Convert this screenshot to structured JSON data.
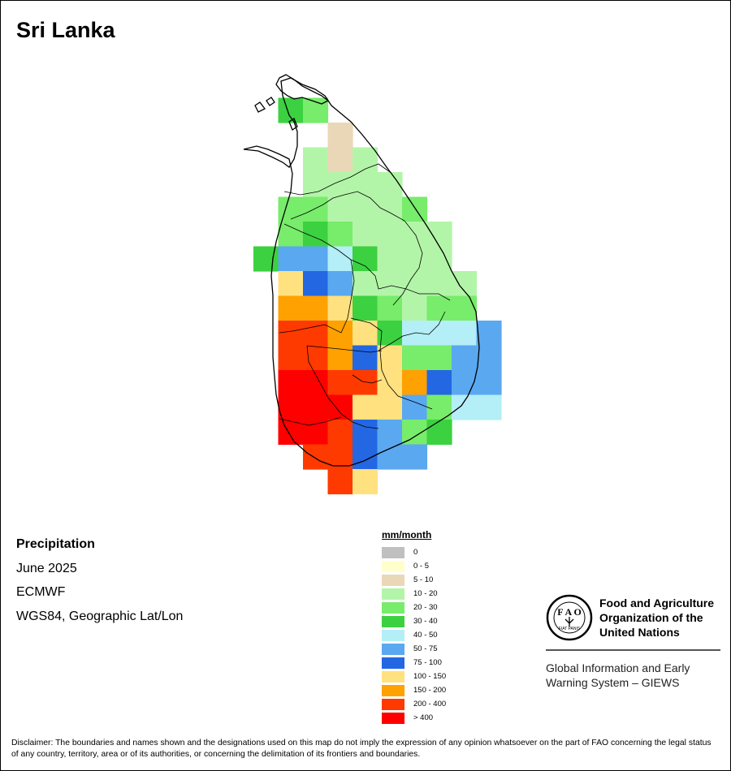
{
  "title": "Sri Lanka",
  "info": {
    "variable": "Precipitation",
    "period": "June 2025",
    "model": "ECMWF",
    "projection": "WGS84, Geographic Lat/Lon"
  },
  "legend": {
    "title": "mm/month",
    "classes": [
      {
        "label": "0",
        "color": "#c0c0c0"
      },
      {
        "label": "0 - 5",
        "color": "#ffffcc"
      },
      {
        "label": "5 - 10",
        "color": "#ead7b7"
      },
      {
        "label": "10 - 20",
        "color": "#b3f5a8"
      },
      {
        "label": "20 - 30",
        "color": "#78ec6b"
      },
      {
        "label": "30 - 40",
        "color": "#3cd140"
      },
      {
        "label": "40 - 50",
        "color": "#b4eef6"
      },
      {
        "label": "50 - 75",
        "color": "#5aa8f0"
      },
      {
        "label": "75 - 100",
        "color": "#2367e3"
      },
      {
        "label": "100 - 150",
        "color": "#ffe180"
      },
      {
        "label": "150 - 200",
        "color": "#ffa100"
      },
      {
        "label": "200 - 400",
        "color": "#ff3a00"
      },
      {
        "label": "> 400",
        "color": "#ff0000"
      }
    ]
  },
  "grid": {
    "col0": 312,
    "row0": 90,
    "cell": 30.5,
    "rows": [
      [
        null,
        null,
        null,
        null,
        null,
        null,
        null,
        null,
        null,
        null
      ],
      [
        null,
        5,
        4,
        null,
        null,
        null,
        null,
        null,
        null,
        null
      ],
      [
        null,
        null,
        null,
        2,
        null,
        null,
        null,
        null,
        null,
        null
      ],
      [
        null,
        null,
        3,
        2,
        3,
        null,
        null,
        null,
        null,
        null
      ],
      [
        null,
        null,
        3,
        3,
        3,
        3,
        null,
        null,
        null,
        null
      ],
      [
        null,
        4,
        4,
        3,
        3,
        3,
        4,
        null,
        null,
        null
      ],
      [
        null,
        4,
        5,
        4,
        3,
        3,
        3,
        3,
        null,
        null
      ],
      [
        5,
        7,
        7,
        6,
        5,
        3,
        3,
        3,
        null,
        null
      ],
      [
        null,
        9,
        8,
        7,
        3,
        3,
        3,
        3,
        3,
        null
      ],
      [
        null,
        10,
        10,
        9,
        5,
        4,
        3,
        4,
        4,
        null
      ],
      [
        null,
        11,
        11,
        10,
        9,
        5,
        6,
        6,
        6,
        7
      ],
      [
        null,
        11,
        11,
        10,
        8,
        9,
        4,
        4,
        7,
        7
      ],
      [
        null,
        12,
        12,
        11,
        11,
        9,
        10,
        8,
        7,
        7
      ],
      [
        null,
        12,
        12,
        12,
        9,
        9,
        7,
        4,
        6,
        6
      ],
      [
        null,
        12,
        12,
        11,
        8,
        7,
        4,
        5,
        null,
        null
      ],
      [
        null,
        null,
        11,
        11,
        8,
        7,
        7,
        null,
        null,
        null
      ],
      [
        null,
        null,
        null,
        11,
        9,
        null,
        null,
        null,
        null,
        null
      ]
    ]
  },
  "fao": {
    "name_line1": "Food and Agriculture",
    "name_line2": "Organization of the",
    "name_line3": "United Nations",
    "logo_text": "F A O",
    "motto": "FIAT PANIS",
    "giews_line1": "Global Information and Early",
    "giews_line2": "Warning System – GIEWS"
  },
  "disclaimer": "Disclaimer: The boundaries and names shown and the designations used on this map do not imply the expression of any opinion whatsoever on the part of FAO concerning the legal status of any country, territory, area or of its authorities, or concerning the delimitation of its frontiers and boundaries."
}
